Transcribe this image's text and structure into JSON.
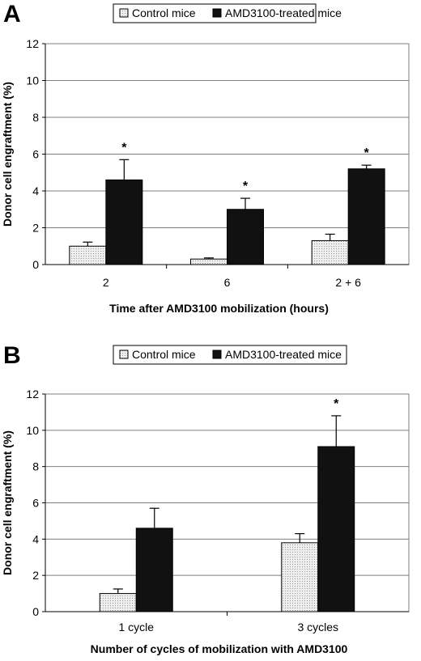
{
  "panels": {
    "a": {
      "letter": "A"
    },
    "b": {
      "letter": "B"
    }
  },
  "colors": {
    "control_fill": "#eeeeee",
    "treated_fill": "#111111",
    "grid": "#7f7f7f",
    "axis": "#000000"
  },
  "chart_data": [
    {
      "type": "bar",
      "panel": "A",
      "categories": [
        "2",
        "6",
        "2 + 6"
      ],
      "series": [
        {
          "name": "Control mice",
          "values": [
            1.0,
            0.3,
            1.3
          ],
          "errors": [
            0.22,
            0.06,
            0.35
          ]
        },
        {
          "name": "AMD3100-treated mice",
          "values": [
            4.6,
            3.0,
            5.2
          ],
          "errors": [
            1.1,
            0.6,
            0.2
          ]
        }
      ],
      "significance": [
        "*",
        "*",
        "*"
      ],
      "xlabel": "Time after AMD3100 mobilization (hours)",
      "ylabel": "Donor cell engraftment (%)",
      "ylim": [
        0,
        12
      ],
      "yticks": [
        "0",
        "2",
        "4",
        "6",
        "8",
        "10",
        "12"
      ],
      "grid": true,
      "legend_position": "top-center"
    },
    {
      "type": "bar",
      "panel": "B",
      "categories": [
        "1 cycle",
        "3 cycles"
      ],
      "series": [
        {
          "name": "Control mice",
          "values": [
            1.0,
            3.8
          ],
          "errors": [
            0.25,
            0.5
          ]
        },
        {
          "name": "AMD3100-treated mice",
          "values": [
            4.6,
            9.1
          ],
          "errors": [
            1.1,
            1.7
          ]
        }
      ],
      "significance": [
        "",
        "*"
      ],
      "xlabel": "Number of cycles of mobilization with AMD3100",
      "ylabel": "Donor cell engraftment (%)",
      "ylim": [
        0,
        12
      ],
      "yticks": [
        "0",
        "2",
        "4",
        "6",
        "8",
        "10",
        "12"
      ],
      "grid": true,
      "legend_position": "top-center"
    }
  ]
}
